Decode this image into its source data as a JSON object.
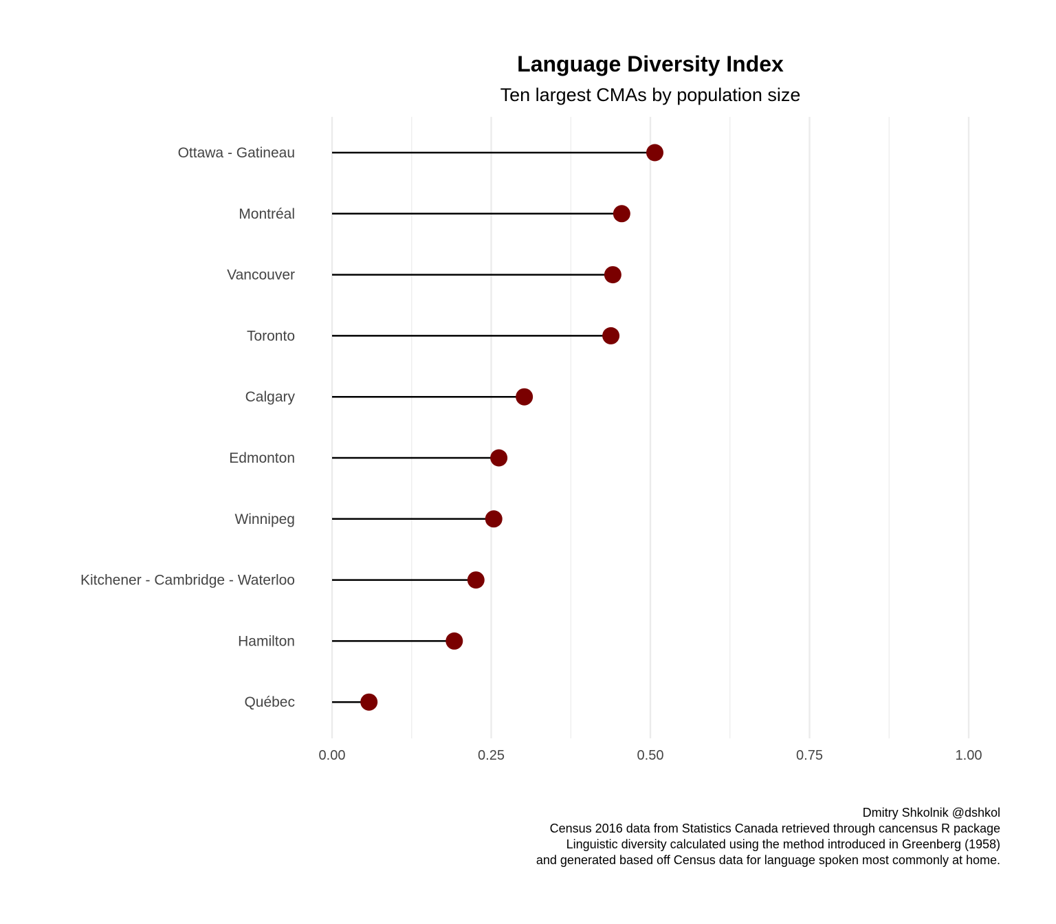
{
  "chart_data": {
    "type": "lollipop",
    "title": "Language Diversity Index",
    "subtitle": "Ten largest CMAs by population size",
    "categories": [
      "Ottawa - Gatineau",
      "Montréal",
      "Vancouver",
      "Toronto",
      "Calgary",
      "Edmonton",
      "Winnipeg",
      "Kitchener - Cambridge - Waterloo",
      "Hamilton",
      "Québec"
    ],
    "values": [
      0.507,
      0.455,
      0.441,
      0.438,
      0.302,
      0.262,
      0.254,
      0.226,
      0.192,
      0.058
    ],
    "xlim": [
      0,
      1
    ],
    "x_ticks": [
      0,
      0.25,
      0.5,
      0.75,
      1.0
    ],
    "x_tick_labels": [
      "0.00",
      "0.25",
      "0.50",
      "0.75",
      "1.00"
    ],
    "xlabel": "",
    "ylabel": "",
    "grid": "vertical",
    "point_color": "#7a0000",
    "line_color": "#000000",
    "grid_color": "#ebebeb",
    "caption": [
      "Dmitry Shkolnik @dshkol",
      "Census 2016 data from Statistics Canada retrieved through cancensus R package",
      "Linguistic diversity calculated using the method introduced in Greenberg (1958)",
      "and generated based off Census data for language spoken most commonly at home."
    ]
  }
}
